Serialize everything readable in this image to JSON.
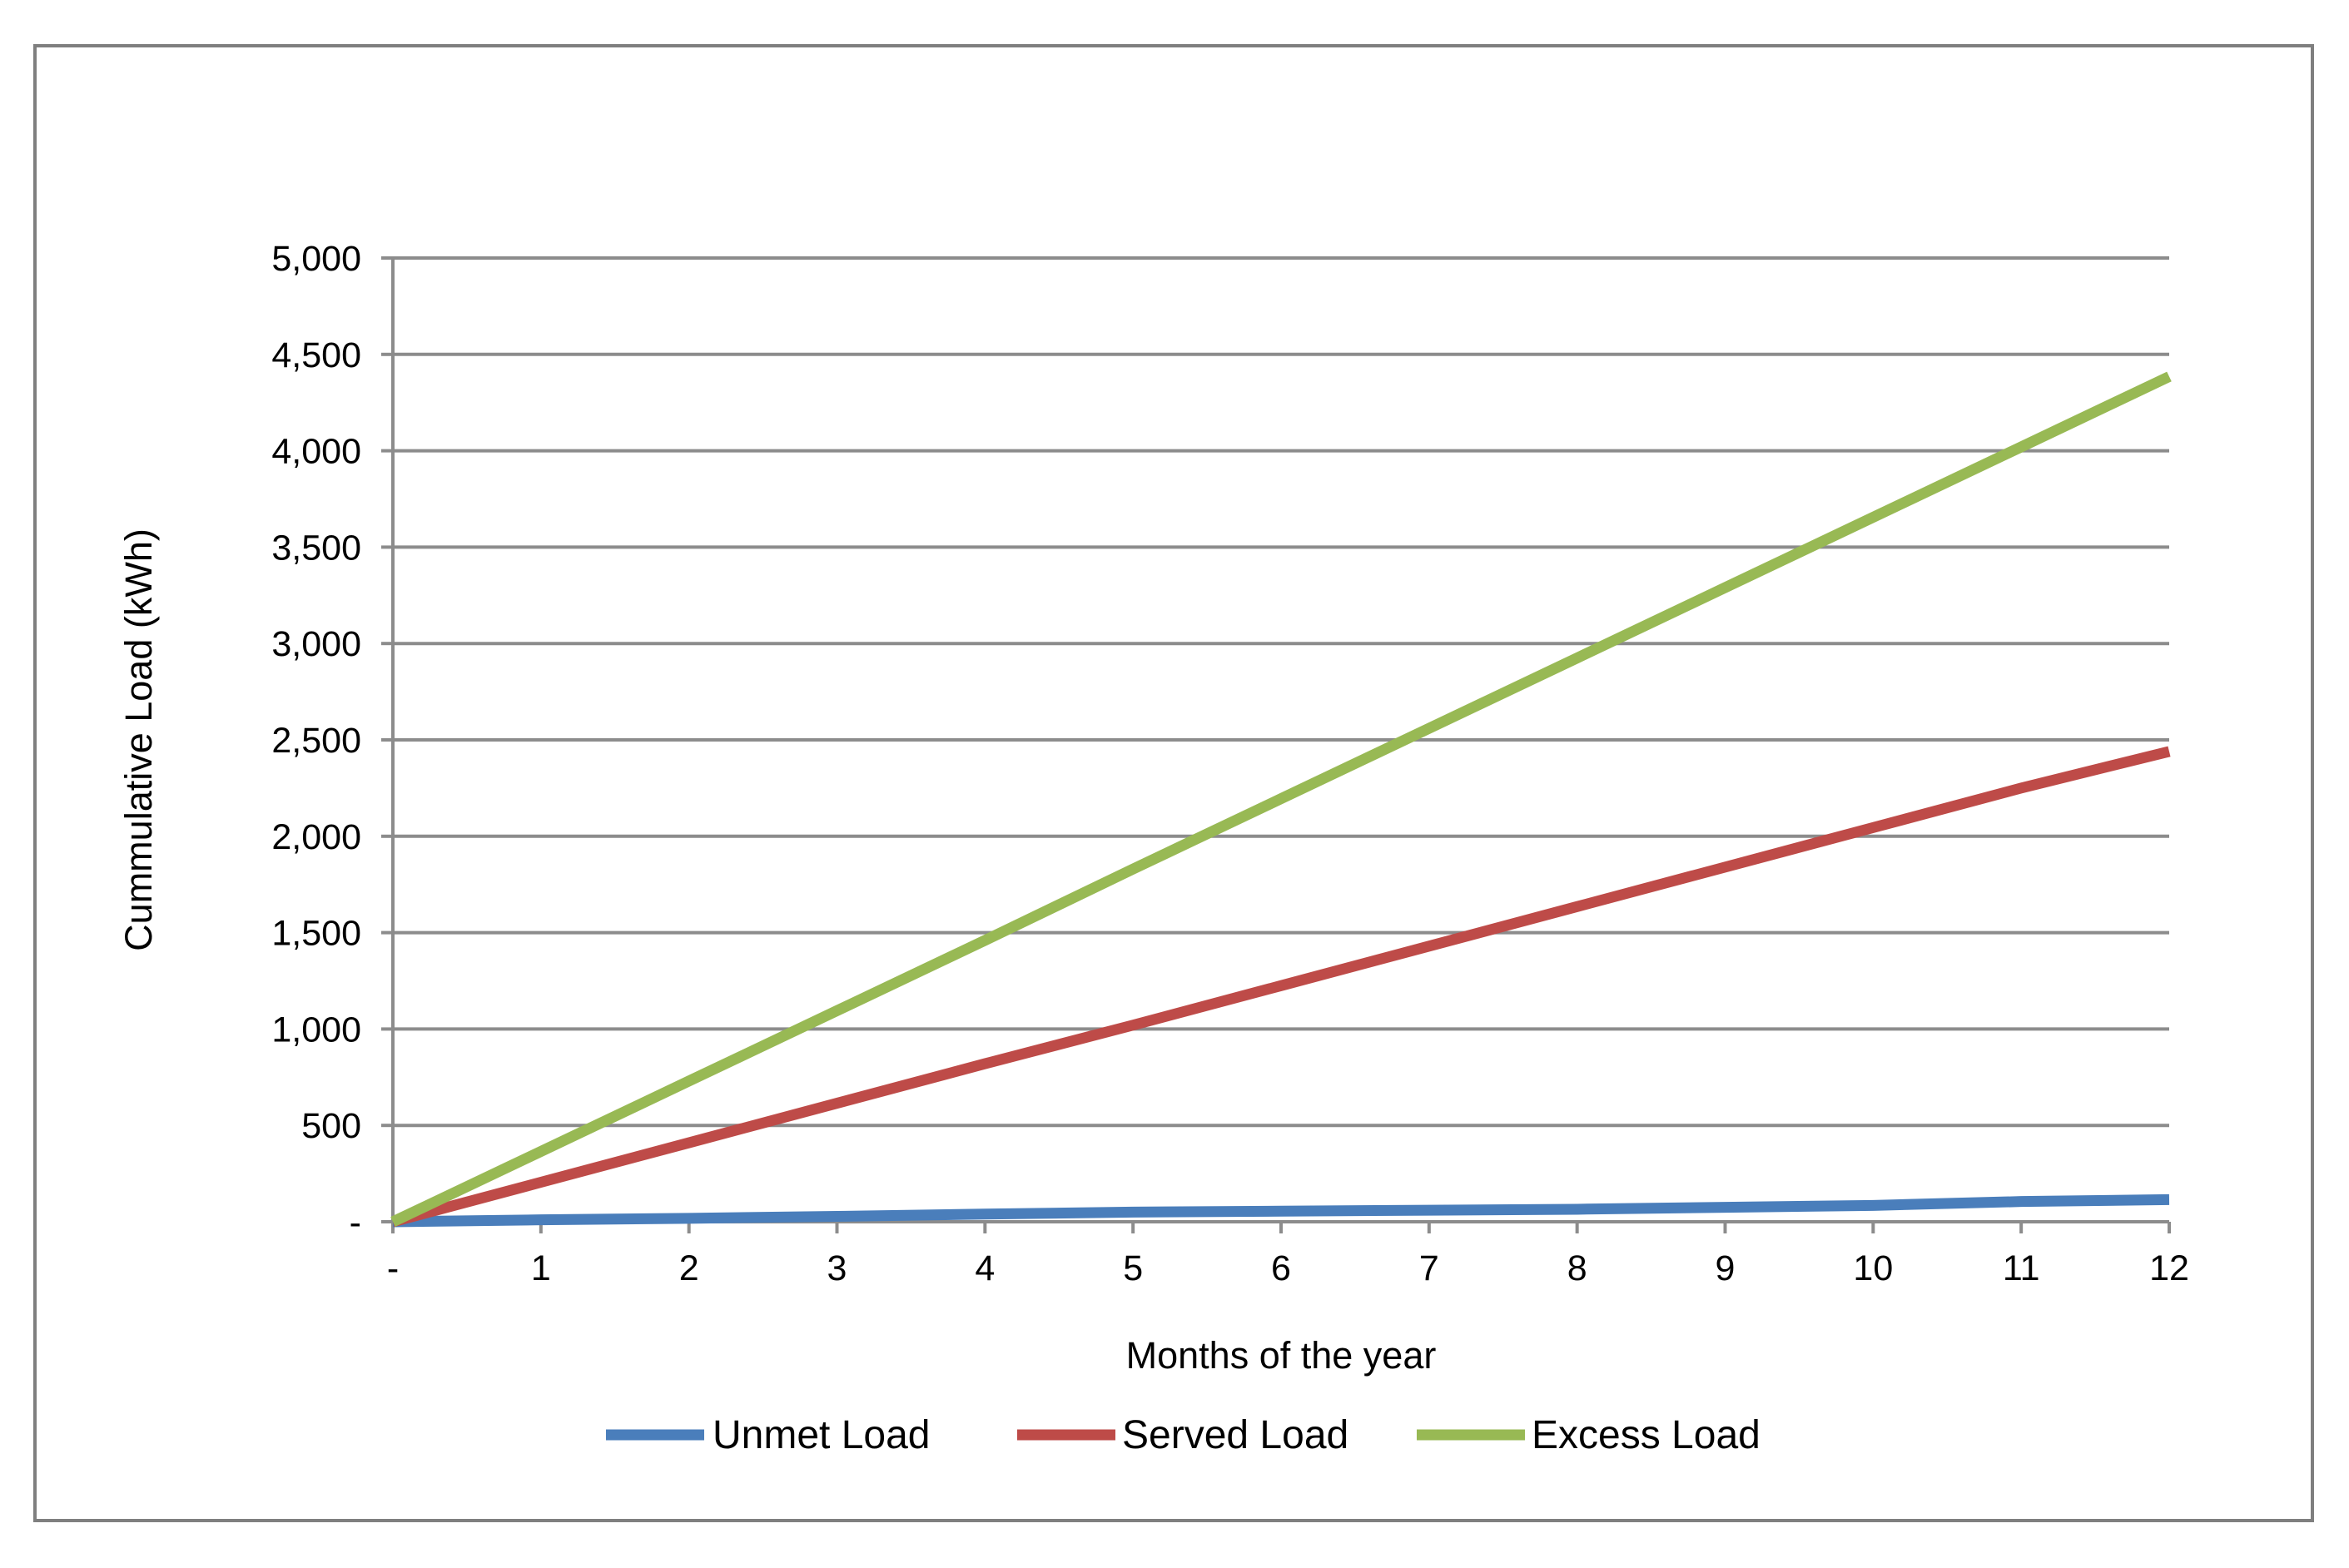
{
  "chart_data": {
    "type": "line",
    "title": "",
    "xlabel": "Months of the year",
    "ylabel": "Cummulative Load (kWh)",
    "xlim": [
      0,
      12
    ],
    "ylim": [
      0,
      5000
    ],
    "x_ticks": [
      0,
      1,
      2,
      3,
      4,
      5,
      6,
      7,
      8,
      9,
      10,
      11,
      12
    ],
    "x_tick_labels": [
      "-",
      "1",
      "2",
      "3",
      "4",
      "5",
      "6",
      "7",
      "8",
      "9",
      "10",
      "11",
      "12"
    ],
    "y_ticks": [
      0,
      500,
      1000,
      1500,
      2000,
      2500,
      3000,
      3500,
      4000,
      4500,
      5000
    ],
    "y_tick_labels": [
      "-",
      "500",
      "1,000",
      "1,500",
      "2,000",
      "2,500",
      "3,000",
      "3,500",
      "4,000",
      "4,500",
      "5,000"
    ],
    "grid": "horizontal",
    "legend_position": "bottom",
    "x": [
      0,
      1,
      2,
      3,
      4,
      5,
      6,
      7,
      8,
      9,
      10,
      11,
      12
    ],
    "series": [
      {
        "name": "Unmet Load",
        "color": "#4a7ebb",
        "values": [
          0,
          10,
          18,
          28,
          40,
          50,
          55,
          60,
          65,
          75,
          85,
          105,
          115
        ]
      },
      {
        "name": "Served Load",
        "color": "#be4b48",
        "values": [
          0,
          205,
          410,
          615,
          820,
          1020,
          1225,
          1430,
          1635,
          1840,
          2045,
          2250,
          2440
        ]
      },
      {
        "name": "Excess Load",
        "color": "#98b954",
        "values": [
          0,
          365,
          730,
          1095,
          1460,
          1830,
          2195,
          2560,
          2925,
          3290,
          3655,
          4020,
          4385
        ]
      }
    ]
  }
}
